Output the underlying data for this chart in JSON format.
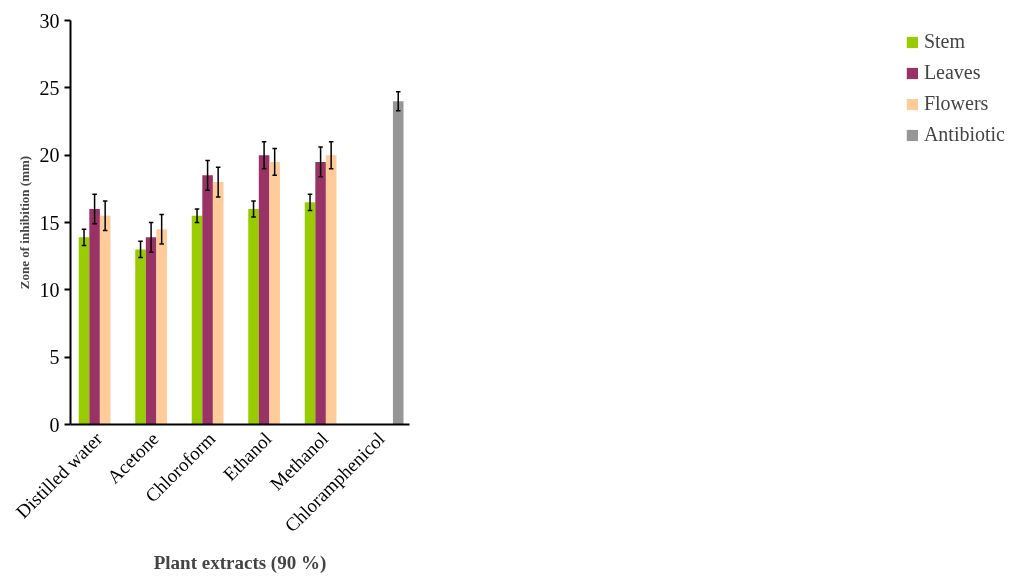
{
  "chart_data": {
    "type": "bar",
    "xlabel": "Plant extracts (90 %)",
    "ylabel": "Zone of inhibition (mm)",
    "categories": [
      "Distilled water",
      "Acetone",
      "Chloroform",
      "Ethanol",
      "Methanol",
      "Chloramphenicol"
    ],
    "ylim": [
      0,
      30
    ],
    "yticks": [
      0,
      5,
      10,
      15,
      20,
      25,
      30
    ],
    "grid": false,
    "legend": "right",
    "series": [
      {
        "name": "Stem",
        "color": "#99cc00",
        "values": [
          13.9,
          13.0,
          15.5,
          16.0,
          16.5,
          null
        ],
        "errors": [
          0.6,
          0.6,
          0.5,
          0.6,
          0.6,
          null
        ]
      },
      {
        "name": "Leaves",
        "color": "#993366",
        "values": [
          16.0,
          13.9,
          18.5,
          20.0,
          19.5,
          null
        ],
        "errors": [
          1.1,
          1.1,
          1.1,
          1.0,
          1.1,
          null
        ]
      },
      {
        "name": "Flowers",
        "color": "#ffcc99",
        "values": [
          15.5,
          14.5,
          18.0,
          19.5,
          20.0,
          null
        ],
        "errors": [
          1.1,
          1.1,
          1.1,
          1.0,
          1.0,
          null
        ]
      },
      {
        "name": "Antibiotic",
        "color": "#969696",
        "values": [
          null,
          null,
          null,
          null,
          null,
          24.0
        ],
        "errors": [
          null,
          null,
          null,
          null,
          null,
          0.7
        ]
      }
    ]
  }
}
